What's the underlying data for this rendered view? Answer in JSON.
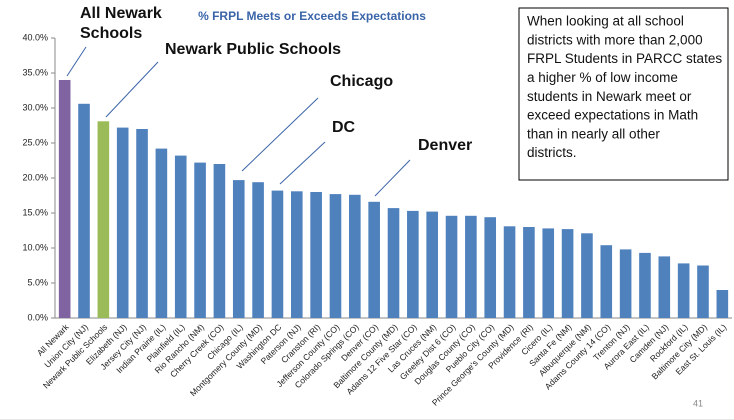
{
  "chart_data": {
    "type": "bar",
    "title": "% FRPL Meets or Exceeds Expectations",
    "categories": [
      "All Newark",
      "Union City (NJ)",
      "Newark Public Schools",
      "Elizabeth (NJ)",
      "Jersey City (NJ)",
      "Indian Prairie (IL)",
      "Plainfield (IL)",
      "Rio Rancho (NM)",
      "Cherry Creek (CO)",
      "Chicago (IL)",
      "Montgomery County (MD)",
      "Washington DC",
      "Paterson (NJ)",
      "Cranston (RI)",
      "Jefferson County (CO)",
      "Colorado Springs (CO)",
      "Denver (CO)",
      "Baltimore County (MD)",
      "Adams 12 Five Star (CO)",
      "Las Cruces (NM)",
      "Greeley Dist 6 (CO)",
      "Douglas County (CO)",
      "Pueblo City (CO)",
      "Prince George's County (MD)",
      "Providence (RI)",
      "Cicero (IL)",
      "Santa Fe (NM)",
      "Albuquerque (NM)",
      "Adams County 14 (CO)",
      "Trenton (NJ)",
      "Aurora East (IL)",
      "Camden (NJ)",
      "Rockford (IL)",
      "Baltimore City (MD)",
      "East St. Louis (IL)"
    ],
    "values": [
      34.0,
      30.6,
      28.1,
      27.2,
      27.0,
      24.2,
      23.2,
      22.2,
      22.0,
      19.7,
      19.4,
      18.2,
      18.1,
      18.0,
      17.7,
      17.6,
      16.6,
      15.7,
      15.3,
      15.2,
      14.6,
      14.6,
      14.4,
      13.1,
      13.0,
      12.8,
      12.7,
      12.1,
      10.4,
      9.8,
      9.3,
      8.8,
      7.8,
      7.5,
      4.0
    ],
    "colors": [
      "#8064a2",
      "#4f81bd",
      "#9bbb59",
      "#4f81bd",
      "#4f81bd",
      "#4f81bd",
      "#4f81bd",
      "#4f81bd",
      "#4f81bd",
      "#4f81bd",
      "#4f81bd",
      "#4f81bd",
      "#4f81bd",
      "#4f81bd",
      "#4f81bd",
      "#4f81bd",
      "#4f81bd",
      "#4f81bd",
      "#4f81bd",
      "#4f81bd",
      "#4f81bd",
      "#4f81bd",
      "#4f81bd",
      "#4f81bd",
      "#4f81bd",
      "#4f81bd",
      "#4f81bd",
      "#4f81bd",
      "#4f81bd",
      "#4f81bd",
      "#4f81bd",
      "#4f81bd",
      "#4f81bd",
      "#4f81bd",
      "#4f81bd"
    ],
    "ylim": [
      0,
      40
    ],
    "yticks": [
      {
        "value": 0,
        "label": "0.0%"
      },
      {
        "value": 5,
        "label": "5.0%"
      },
      {
        "value": 10,
        "label": "10.0%"
      },
      {
        "value": 15,
        "label": "15.0%"
      },
      {
        "value": 20,
        "label": "20.0%"
      },
      {
        "value": 25,
        "label": "25.0%"
      },
      {
        "value": 30,
        "label": "30.0%"
      },
      {
        "value": 35,
        "label": "35.0%"
      },
      {
        "value": 40,
        "label": "40.0%"
      }
    ],
    "annotations": [
      [
        "All Newark",
        "Schools"
      ],
      [
        "Newark Public Schools"
      ],
      [
        "Chicago"
      ],
      [
        "DC"
      ],
      [
        "Denver"
      ]
    ],
    "note": [
      "When looking at all school",
      "districts with more than 2,000",
      "FRPL Students in PARCC states",
      "a higher % of low income",
      "students in Newark meet or",
      "exceed expectations in Math",
      "than in nearly all other",
      "districts."
    ],
    "page_number": "41"
  }
}
